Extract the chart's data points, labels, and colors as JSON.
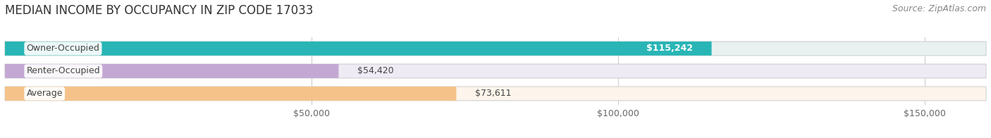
{
  "title": "MEDIAN INCOME BY OCCUPANCY IN ZIP CODE 17033",
  "source": "Source: ZipAtlas.com",
  "categories": [
    "Owner-Occupied",
    "Renter-Occupied",
    "Average"
  ],
  "values": [
    115242,
    54420,
    73611
  ],
  "labels": [
    "$115,242",
    "$54,420",
    "$73,611"
  ],
  "label_inside": [
    true,
    false,
    false
  ],
  "bar_colors": [
    "#29b5b5",
    "#c4a8d4",
    "#f5c28a"
  ],
  "bar_bg_colors": [
    "#e8f0f0",
    "#eeebf5",
    "#fdf5eb"
  ],
  "xlim": [
    0,
    160000
  ],
  "xticks": [
    50000,
    100000,
    150000
  ],
  "xtick_labels": [
    "$50,000",
    "$100,000",
    "$150,000"
  ],
  "background_color": "#ffffff",
  "bar_height": 0.62,
  "title_fontsize": 12,
  "label_fontsize": 9,
  "cat_fontsize": 9,
  "tick_fontsize": 9,
  "source_fontsize": 9
}
